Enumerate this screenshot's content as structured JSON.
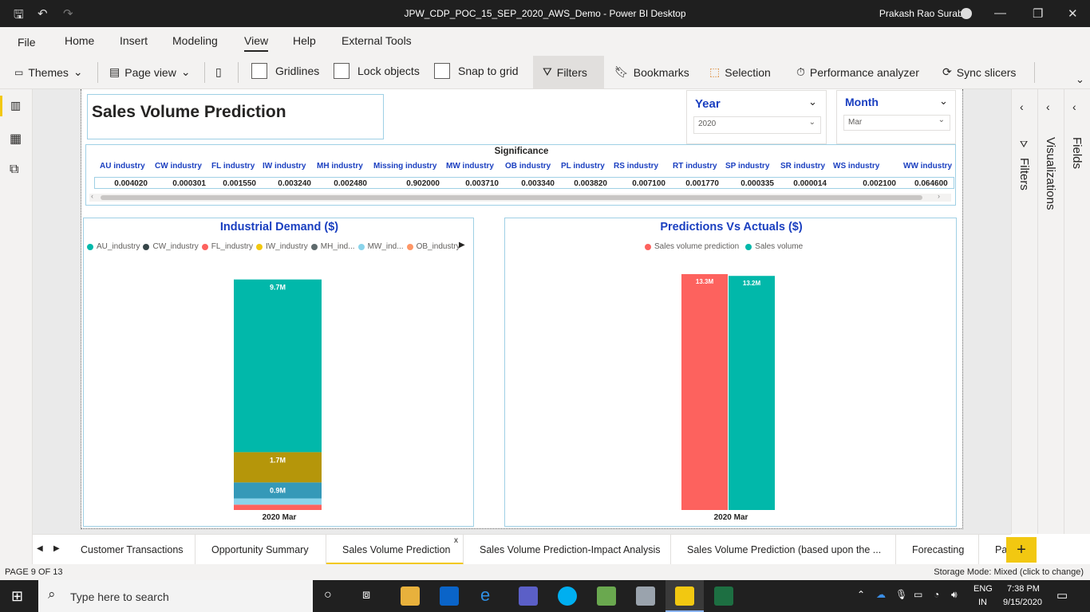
{
  "window": {
    "title": "JPW_CDP_POC_15_SEP_2020_AWS_Demo - Power BI Desktop",
    "user": "Prakash Rao Surabhi"
  },
  "menu": {
    "file": "File",
    "home": "Home",
    "insert": "Insert",
    "modeling": "Modeling",
    "view": "View",
    "help": "Help",
    "external_tools": "External Tools"
  },
  "ribbon": {
    "themes": "Themes",
    "page_view": "Page view",
    "gridlines": "Gridlines",
    "lock_objects": "Lock objects",
    "snap_to_grid": "Snap to grid",
    "filters": "Filters",
    "bookmarks": "Bookmarks",
    "selection": "Selection",
    "performance_analyzer": "Performance analyzer",
    "sync_slicers": "Sync slicers"
  },
  "report": {
    "title": "Sales Volume Prediction",
    "year_slicer": {
      "label": "Year",
      "value": "2020"
    },
    "month_slicer": {
      "label": "Month",
      "value": "Mar"
    },
    "significance": {
      "title": "Significance",
      "headers": [
        "AU industry",
        "CW industry",
        "FL industry",
        "IW industry",
        "MH industry",
        "Missing industry",
        "MW industry",
        "OB industry",
        "PL industry",
        "RS industry",
        "RT industry",
        "SP industry",
        "SR industry",
        "WS industry",
        "WW industry"
      ],
      "values": [
        "0.004020",
        "0.000301",
        "0.001550",
        "0.003240",
        "0.002480",
        "0.902000",
        "0.003710",
        "0.003340",
        "0.003820",
        "0.007100",
        "0.001770",
        "0.000335",
        "0.000014",
        "0.002100",
        "0.064600"
      ]
    }
  },
  "chart_data": [
    {
      "type": "bar",
      "title": "Industrial Demand ($)",
      "categories": [
        "2020 Mar"
      ],
      "legend": [
        "AU_industry",
        "CW_industry",
        "FL_industry",
        "IW_industry",
        "MH_ind...",
        "MW_ind...",
        "OB_industry"
      ],
      "series": [
        {
          "name": "AU_industry",
          "values": [
            9.7
          ],
          "label": "9.7M",
          "color": "#01b8aa"
        },
        {
          "name": "IW_industry",
          "values": [
            1.7
          ],
          "label": "1.7M",
          "color": "#b5960a"
        },
        {
          "name": "MH_industry",
          "values": [
            0.9
          ],
          "label": "0.9M",
          "color": "#3599b8"
        },
        {
          "name": "MW_industry",
          "values": [
            0.35
          ],
          "label": "",
          "color": "#8ad4eb"
        },
        {
          "name": "FL_industry",
          "values": [
            0.3
          ],
          "label": "",
          "color": "#fd625e"
        }
      ]
    },
    {
      "type": "bar",
      "title": "Predictions Vs Actuals ($)",
      "categories": [
        "2020 Mar"
      ],
      "legend": [
        "Sales  volume  prediction",
        "Sales  volume"
      ],
      "series": [
        {
          "name": "Sales  volume  prediction",
          "values": [
            13.3
          ],
          "label": "13.3M",
          "color": "#fd625e"
        },
        {
          "name": "Sales  volume",
          "values": [
            13.2
          ],
          "label": "13.2M",
          "color": "#01b8aa"
        }
      ]
    }
  ],
  "panes": {
    "filters": "Filters",
    "visualizations": "Visualizations",
    "fields": "Fields"
  },
  "tabs": [
    "Customer Transactions",
    "Opportunity Summary",
    "Sales Volume Prediction",
    "Sales Volume Prediction-Impact Analysis",
    "Sales Volume Prediction (based upon the ...",
    "Forecasting",
    "Pa"
  ],
  "status": {
    "page": "PAGE 9 OF 13",
    "storage": "Storage Mode: Mixed (click to change)"
  },
  "taskbar": {
    "search_placeholder": "Type here to search",
    "lang1": "ENG",
    "lang2": "IN",
    "time": "7:38 PM",
    "date": "9/15/2020"
  }
}
